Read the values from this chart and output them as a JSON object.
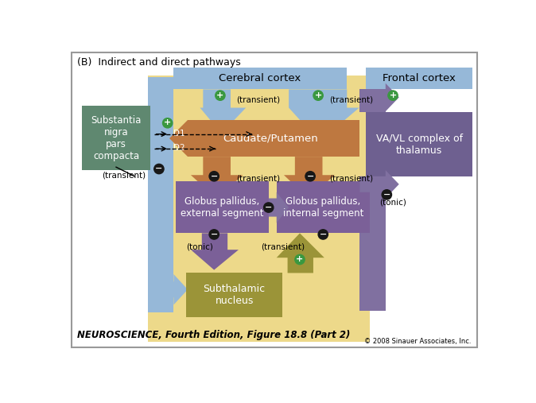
{
  "title": "(B)  Indirect and direct pathways",
  "footer_left": "NEUROSCIENCE, Fourth Edition, Figure 18.8 (Part 2)",
  "footer_right": "© 2008 Sinauer Associates, Inc.",
  "colors": {
    "yellow_bg": "#EDD98A",
    "blue_light": "#96B8D8",
    "orange": "#BE7840",
    "purple": "#7B6098",
    "purple_light": "#9080A8",
    "green_box": "#5F8870",
    "olive": "#9B9438",
    "plus_green": "#3A9840",
    "minus_dark": "#181818"
  }
}
